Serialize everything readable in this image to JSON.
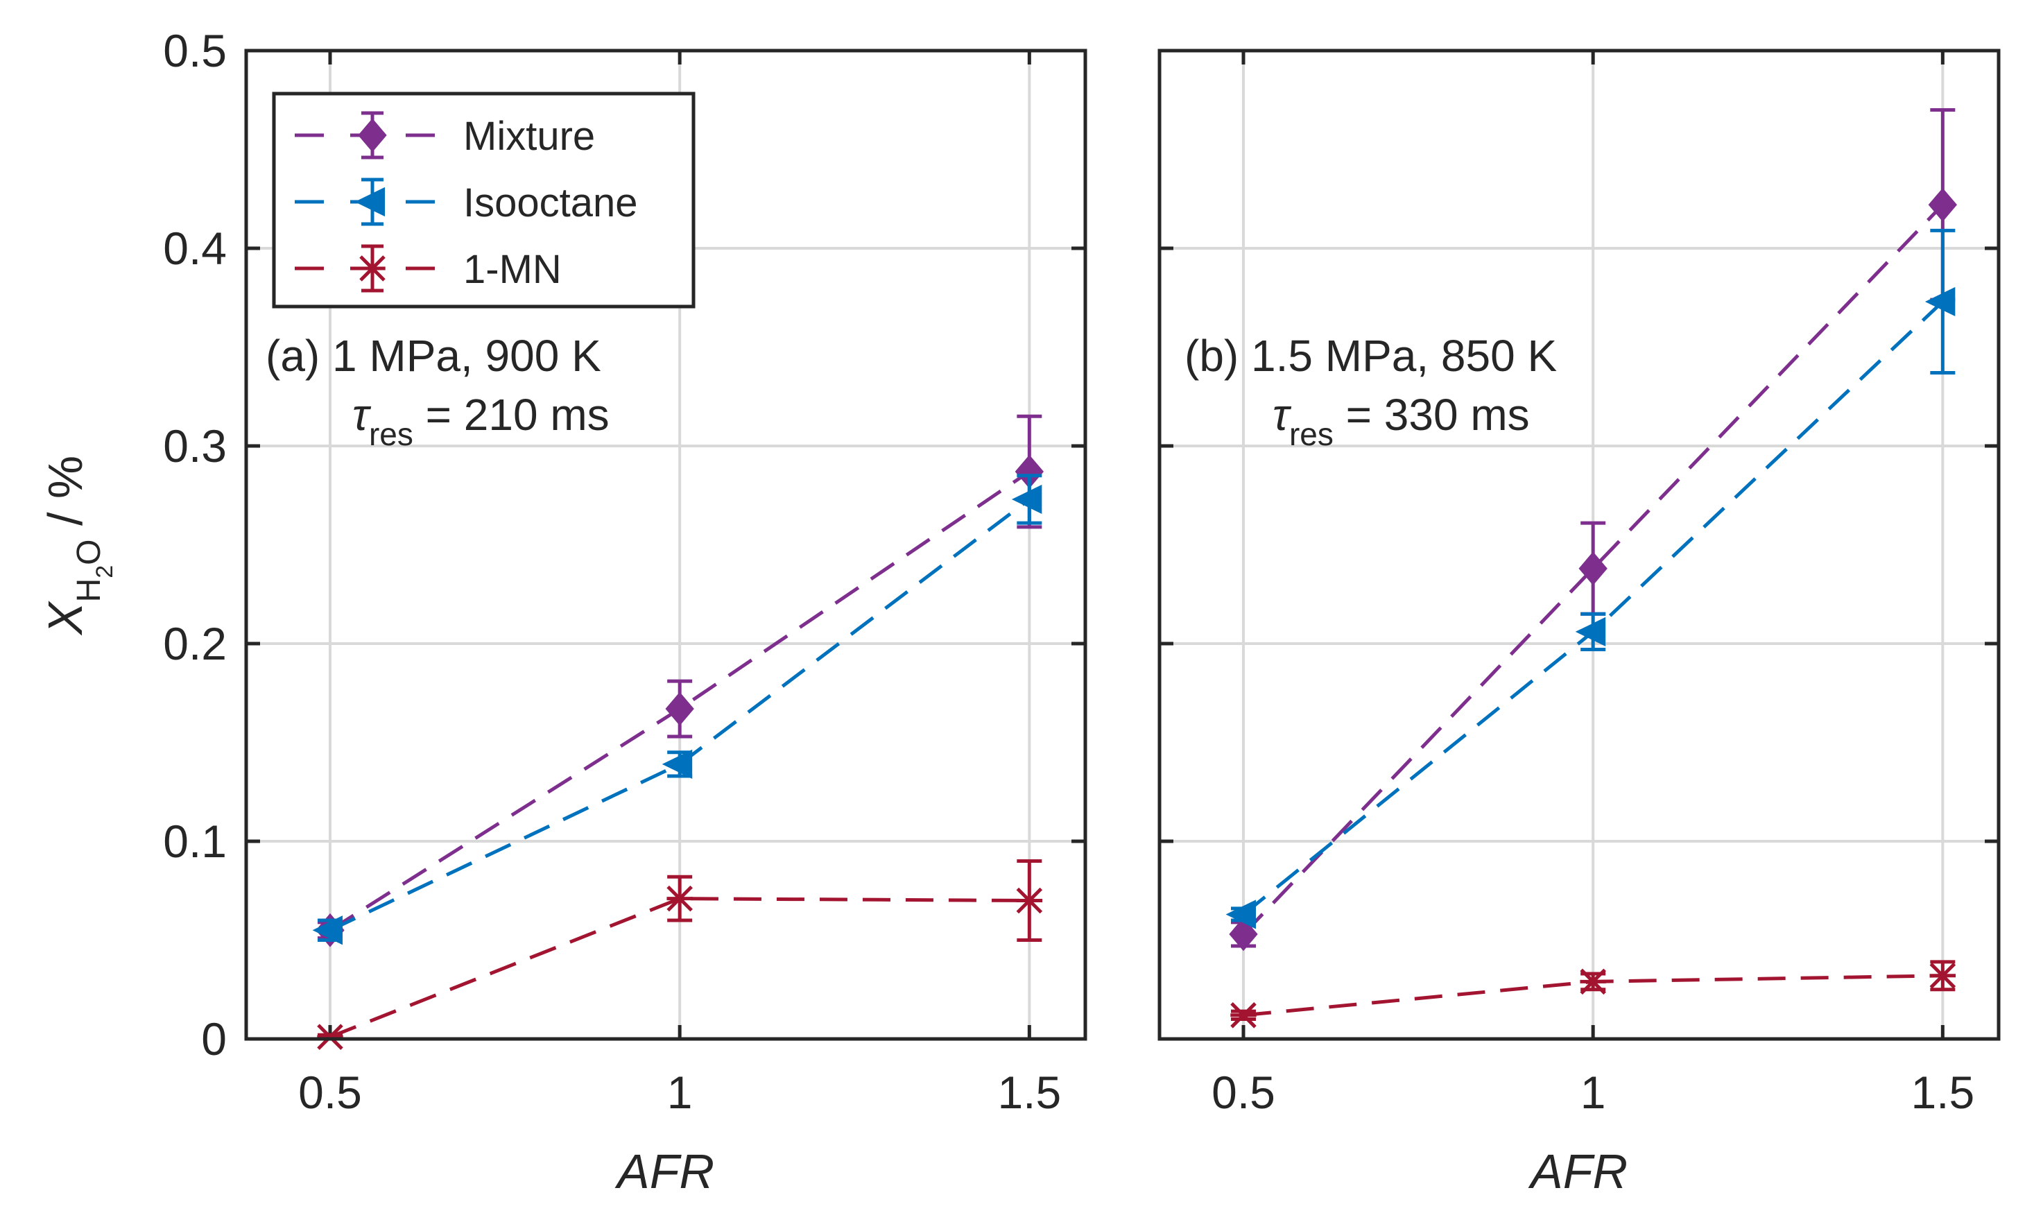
{
  "colors": {
    "mixture": "#7e2f8e",
    "isooctane": "#0072bd",
    "one_mn": "#a2142f",
    "axis": "#262626",
    "grid": "#d9d9d9"
  },
  "ylabel": {
    "symbol": "X",
    "sub1": "H",
    "sub2": "2",
    "sub3": "O",
    "unit": " / %"
  },
  "legend": {
    "entries": [
      "Mixture",
      "Isooctane",
      "1-MN"
    ]
  },
  "annotations": {
    "a": {
      "line1": "(a) 1 MPa, 900 K",
      "tau": "τ",
      "tau_sub": "res",
      "tau_rest": " = 210 ms"
    },
    "b": {
      "line1": "(b) 1.5 MPa, 850 K",
      "tau": "τ",
      "tau_sub": "res",
      "tau_rest": " = 330 ms"
    }
  },
  "chart_data": [
    {
      "type": "line",
      "panel": "a",
      "xlabel": "AFR",
      "ylabel": "X_H2O / %",
      "xlim": [
        0.38,
        1.58
      ],
      "ylim": [
        0,
        0.5
      ],
      "xticks": [
        0.5,
        1,
        1.5
      ],
      "xtick_labels": [
        "0.5",
        "1",
        "1.5"
      ],
      "yticks": [
        0,
        0.1,
        0.2,
        0.3,
        0.4,
        0.5
      ],
      "ytick_labels": [
        "0",
        "0.1",
        "0.2",
        "0.3",
        "0.4",
        "0.5"
      ],
      "grid": true,
      "legend_position": "top-left",
      "series": [
        {
          "name": "Mixture",
          "marker": "diamond",
          "x": [
            0.5,
            1,
            1.5
          ],
          "values": [
            0.055,
            0.167,
            0.287
          ],
          "err": [
            0.004,
            0.014,
            0.028
          ]
        },
        {
          "name": "Isooctane",
          "marker": "left-triangle",
          "x": [
            0.5,
            1,
            1.5
          ],
          "values": [
            0.055,
            0.139,
            0.273
          ],
          "err": [
            0.005,
            0.006,
            0.012
          ]
        },
        {
          "name": "1-MN",
          "marker": "star",
          "x": [
            0.5,
            1,
            1.5
          ],
          "values": [
            0.001,
            0.071,
            0.07
          ],
          "err": [
            0.001,
            0.011,
            0.02
          ]
        }
      ]
    },
    {
      "type": "line",
      "panel": "b",
      "xlabel": "AFR",
      "ylabel": "",
      "xlim": [
        0.38,
        1.58
      ],
      "ylim": [
        0,
        0.5
      ],
      "xticks": [
        0.5,
        1,
        1.5
      ],
      "xtick_labels": [
        "0.5",
        "1",
        "1.5"
      ],
      "yticks": [
        0,
        0.1,
        0.2,
        0.3,
        0.4,
        0.5
      ],
      "ytick_labels": [],
      "grid": true,
      "series": [
        {
          "name": "Mixture",
          "marker": "diamond",
          "x": [
            0.5,
            1,
            1.5
          ],
          "values": [
            0.053,
            0.238,
            0.422
          ],
          "err": [
            0.006,
            0.023,
            0.048
          ]
        },
        {
          "name": "Isooctane",
          "marker": "left-triangle",
          "x": [
            0.5,
            1,
            1.5
          ],
          "values": [
            0.063,
            0.206,
            0.373
          ],
          "err": [
            0.003,
            0.009,
            0.036
          ]
        },
        {
          "name": "1-MN",
          "marker": "star",
          "x": [
            0.5,
            1,
            1.5
          ],
          "values": [
            0.012,
            0.029,
            0.032
          ],
          "err": [
            0.002,
            0.004,
            0.007
          ]
        }
      ]
    }
  ]
}
